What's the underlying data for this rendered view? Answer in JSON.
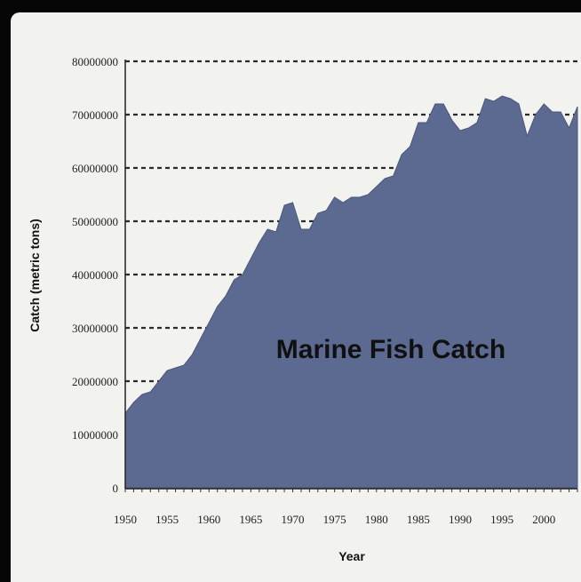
{
  "chart_data": {
    "type": "area",
    "title": "Marine Fish Catch",
    "xlabel": "Year",
    "ylabel": "Catch (metric tons)",
    "x_ticks": [
      "1950",
      "1955",
      "1960",
      "1965",
      "1970",
      "1975",
      "1980",
      "1985",
      "1990",
      "1995",
      "2000"
    ],
    "y_ticks": [
      "0",
      "10000000",
      "20000000",
      "30000000",
      "40000000",
      "50000000",
      "60000000",
      "70000000",
      "80000000"
    ],
    "xlim": [
      1950,
      2004
    ],
    "ylim": [
      0,
      80000000
    ],
    "grid": "horizontal dashed",
    "fill_color": "#5c6a91",
    "series": [
      {
        "x": [
          1950,
          1951,
          1952,
          1953,
          1954,
          1955,
          1956,
          1957,
          1958,
          1959,
          1960,
          1961,
          1962,
          1963,
          1964,
          1965,
          1966,
          1967,
          1968,
          1969,
          1970,
          1971,
          1972,
          1973,
          1974,
          1975,
          1976,
          1977,
          1978,
          1979,
          1980,
          1981,
          1982,
          1983,
          1984,
          1985,
          1986,
          1987,
          1988,
          1989,
          1990,
          1991,
          1992,
          1993,
          1994,
          1995,
          1996,
          1997,
          1998,
          1999,
          2000,
          2001,
          2002,
          2003,
          2004
        ],
        "y": [
          14000000,
          16000000,
          17500000,
          18000000,
          20000000,
          22000000,
          22500000,
          23000000,
          25000000,
          28000000,
          31000000,
          34000000,
          36000000,
          39000000,
          40000000,
          43000000,
          46000000,
          48500000,
          48000000,
          53000000,
          53500000,
          48500000,
          48500000,
          51500000,
          52000000,
          54500000,
          53500000,
          54500000,
          54500000,
          55000000,
          56500000,
          58000000,
          58500000,
          62500000,
          64000000,
          68500000,
          68500000,
          72000000,
          72000000,
          69000000,
          67000000,
          67500000,
          68500000,
          73000000,
          72500000,
          73500000,
          73000000,
          72000000,
          66000000,
          70000000,
          72000000,
          70500000,
          70500000,
          67500000,
          71500000
        ]
      }
    ]
  }
}
